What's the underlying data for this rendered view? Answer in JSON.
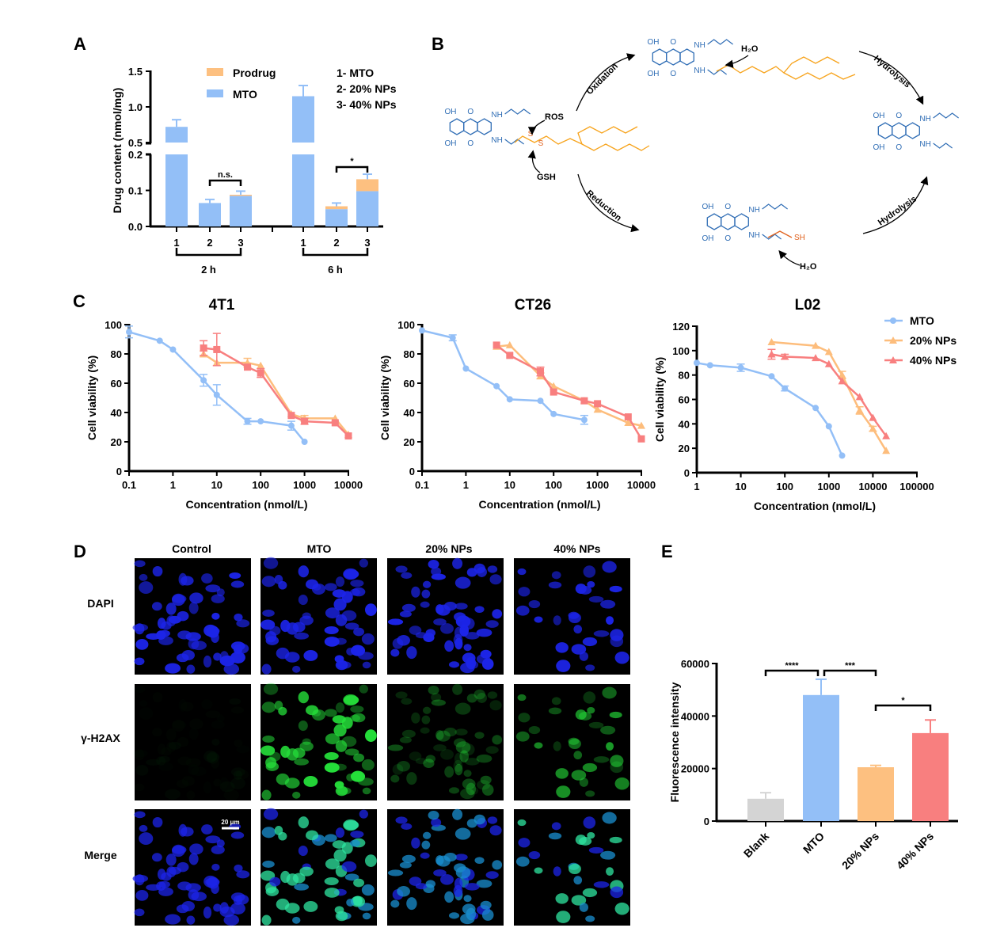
{
  "panels": {
    "a": "A",
    "b": "B",
    "c": "C",
    "d": "D",
    "e": "E"
  },
  "colors": {
    "mto": "#93bff7",
    "prodrug": "#fdc080",
    "np20": "#fdbd7c",
    "np40": "#f87f7f",
    "blank": "#d4d4d4",
    "chain_orange": "#f7a31b",
    "linker_red": "#e0621e",
    "struct_blue": "#2f6db5",
    "nucleus_blue": "#1c24e8",
    "nucleus_green": "#25e03a"
  },
  "chart_data": [
    {
      "id": "A",
      "type": "bar",
      "ylabel": "Drug content (nmol/mg)",
      "y_axis_break": [
        0.2,
        0.5
      ],
      "yticks_lower": [
        "0.0",
        "0.1",
        "0.2"
      ],
      "yticks_upper": [
        "0.5",
        "1.0",
        "1.5"
      ],
      "legend": [
        {
          "name": "Prodrug",
          "color": "#fdc080"
        },
        {
          "name": "MTO",
          "color": "#93bff7"
        }
      ],
      "key": [
        "1- MTO",
        "2- 20% NPs",
        "3- 40% NPs"
      ],
      "groups": [
        {
          "label": "2 h",
          "categories": [
            "1",
            "2",
            "3"
          ],
          "mto": [
            0.72,
            0.065,
            0.085
          ],
          "prodrug": [
            0,
            0,
            0.003
          ],
          "error_top": [
            0.82,
            0.075,
            0.098
          ]
        },
        {
          "label": "6 h",
          "categories": [
            "1",
            "2",
            "3"
          ],
          "mto": [
            1.15,
            0.048,
            0.098
          ],
          "prodrug": [
            0,
            0.008,
            0.033
          ],
          "error_top": [
            1.3,
            0.065,
            0.145
          ]
        }
      ],
      "significance": [
        {
          "group": 0,
          "from": 1,
          "to": 2,
          "label": "n.s."
        },
        {
          "group": 1,
          "from": 1,
          "to": 2,
          "label": "*"
        }
      ]
    },
    {
      "id": "C1",
      "type": "line",
      "title": "4T1",
      "xlabel": "Concentration (nmol/L)",
      "ylabel": "Cell viability (%)",
      "xscale": "log",
      "xlim": [
        0.1,
        10000
      ],
      "ylim": [
        0,
        100
      ],
      "xticks": [
        "0.1",
        "1",
        "10",
        "100",
        "1000",
        "10000"
      ],
      "yticks": [
        "0",
        "20",
        "40",
        "60",
        "80",
        "100"
      ],
      "series": [
        {
          "name": "MTO",
          "color": "#93bff7",
          "marker": "circle",
          "x": [
            0.1,
            0.5,
            1,
            5,
            10,
            50,
            100,
            500,
            1000
          ],
          "y": [
            95,
            89,
            83,
            62,
            52,
            34,
            34,
            31,
            20
          ],
          "err": [
            4,
            0,
            0,
            4,
            7,
            2,
            0,
            3,
            0
          ]
        },
        {
          "name": "20% NPs",
          "color": "#fdbd7c",
          "marker": "triangle",
          "x": [
            5,
            10,
            50,
            100,
            500,
            1000,
            5000,
            10000
          ],
          "y": [
            80,
            74,
            74,
            72,
            39,
            36,
            36,
            25
          ],
          "err": [
            2,
            0,
            3,
            0,
            0,
            2,
            0,
            0
          ]
        },
        {
          "name": "40% NPs",
          "color": "#f87f7f",
          "marker": "square",
          "x": [
            5,
            10,
            50,
            100,
            500,
            1000,
            5000,
            10000
          ],
          "y": [
            84,
            83,
            71,
            67,
            38,
            34,
            33,
            24
          ],
          "err": [
            5,
            11,
            0,
            3,
            0,
            2,
            0,
            0
          ]
        }
      ]
    },
    {
      "id": "C2",
      "type": "line",
      "title": "CT26",
      "xlabel": "Concentration (nmol/L)",
      "ylabel": "Cell viability (%)",
      "xscale": "log",
      "xlim": [
        0.1,
        10000
      ],
      "ylim": [
        0,
        100
      ],
      "xticks": [
        "0.1",
        "1",
        "10",
        "100",
        "1000",
        "10000"
      ],
      "yticks": [
        "0",
        "20",
        "40",
        "60",
        "80",
        "100"
      ],
      "series": [
        {
          "name": "MTO",
          "color": "#93bff7",
          "marker": "circle",
          "x": [
            0.1,
            0.5,
            1,
            5,
            10,
            50,
            100,
            500
          ],
          "y": [
            96,
            91,
            70,
            58,
            49,
            48,
            39,
            35
          ],
          "err": [
            0,
            2,
            0,
            0,
            0,
            0,
            0,
            3
          ]
        },
        {
          "name": "20% NPs",
          "color": "#fdbd7c",
          "marker": "triangle",
          "x": [
            5,
            10,
            50,
            100,
            500,
            1000,
            5000,
            10000
          ],
          "y": [
            85,
            86,
            65,
            58,
            48,
            42,
            33,
            31
          ],
          "err": [
            0,
            0,
            2,
            0,
            0,
            0,
            0,
            0
          ]
        },
        {
          "name": "40% NPs",
          "color": "#f87f7f",
          "marker": "square",
          "x": [
            5,
            10,
            50,
            100,
            500,
            1000,
            5000,
            10000
          ],
          "y": [
            86,
            79,
            68,
            54,
            48,
            46,
            37,
            22
          ],
          "err": [
            0,
            0,
            3,
            0,
            0,
            0,
            0,
            0
          ]
        }
      ]
    },
    {
      "id": "C3",
      "type": "line",
      "title": "L02",
      "xlabel": "Concentration (nmol/L)",
      "ylabel": "Cell viability (%)",
      "xscale": "log",
      "xlim": [
        1,
        100000
      ],
      "ylim": [
        0,
        120
      ],
      "xticks": [
        "1",
        "10",
        "100",
        "1000",
        "10000",
        "100000"
      ],
      "yticks": [
        "0",
        "20",
        "40",
        "60",
        "80",
        "100",
        "120"
      ],
      "legend": "top-right",
      "series": [
        {
          "name": "MTO",
          "color": "#93bff7",
          "marker": "circle",
          "x": [
            1,
            2,
            10,
            50,
            100,
            500,
            1000,
            2000
          ],
          "y": [
            90,
            88,
            86,
            79,
            69,
            53,
            38,
            14
          ],
          "err": [
            0,
            0,
            3,
            0,
            2,
            0,
            0,
            0
          ]
        },
        {
          "name": "20% NPs",
          "color": "#fdbd7c",
          "marker": "triangle",
          "x": [
            50,
            500,
            1000,
            2000,
            5000,
            10000,
            20000
          ],
          "y": [
            107,
            104,
            99,
            80,
            51,
            36,
            18
          ],
          "err": [
            0,
            0,
            0,
            3,
            3,
            2,
            0
          ]
        },
        {
          "name": "40% NPs",
          "color": "#f87f7f",
          "marker": "triangle",
          "x": [
            50,
            100,
            500,
            1000,
            2000,
            5000,
            10000,
            20000
          ],
          "y": [
            97,
            95,
            94,
            89,
            75,
            62,
            45,
            30
          ],
          "err": [
            4,
            2,
            0,
            0,
            0,
            0,
            0,
            0
          ]
        }
      ]
    },
    {
      "id": "E",
      "type": "bar",
      "ylabel": "Fluorescence intensity",
      "ylim": [
        0,
        60000
      ],
      "yticks": [
        "0",
        "20000",
        "40000",
        "60000"
      ],
      "categories": [
        "Blank",
        "MTO",
        "20% NPs",
        "40% NPs"
      ],
      "values": [
        8500,
        48000,
        20500,
        33500
      ],
      "error_top": [
        10800,
        54000,
        21200,
        38500
      ],
      "bar_colors": [
        "#d4d4d4",
        "#93bff7",
        "#fdc080",
        "#f87f7f"
      ],
      "significance": [
        {
          "from": 0,
          "to": 1,
          "label": "****"
        },
        {
          "from": 1,
          "to": 2,
          "label": "***"
        },
        {
          "from": 2,
          "to": 3,
          "label": "*"
        }
      ]
    }
  ],
  "scheme": {
    "ros": "ROS",
    "gsh": "GSH",
    "h2o": "H₂O",
    "h2o_2": "H₂O",
    "oxidation": "Oxidation",
    "reduction": "Reduction",
    "hydrolysis_1": "Hydrolysis",
    "hydrolysis_2": "Hydrolysis",
    "sh": "SH",
    "s": "S",
    "o": "O",
    "oh": "OH",
    "nh": "NH",
    "n": "N"
  },
  "imaging": {
    "columns": [
      "Control",
      "MTO",
      "20% NPs",
      "40% NPs"
    ],
    "rows": [
      "DAPI",
      "γ-H2AX",
      "Merge"
    ],
    "scale_bar": "20 μm",
    "green_level": [
      0.03,
      1.0,
      0.35,
      0.7
    ]
  }
}
